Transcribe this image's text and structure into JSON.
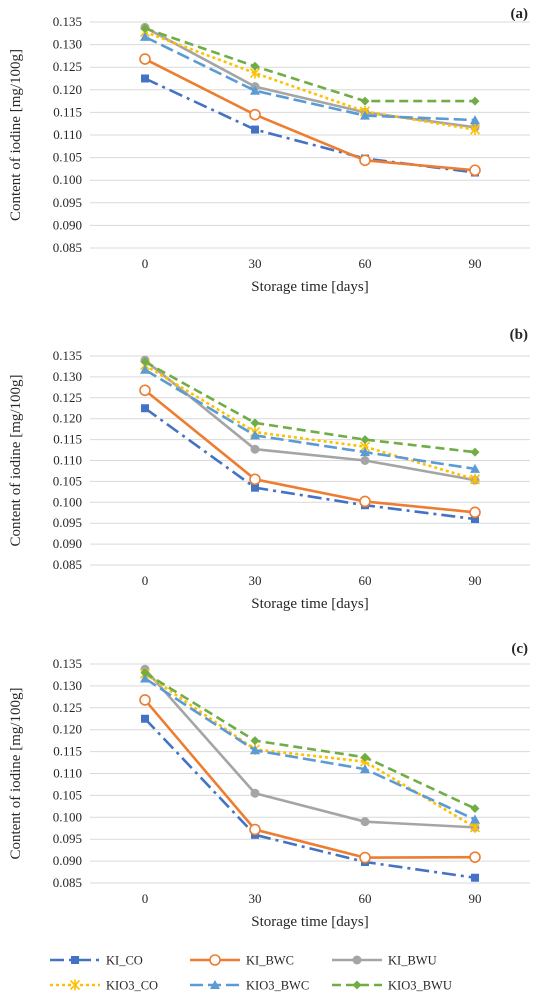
{
  "chart_data": [
    {
      "type": "line",
      "panel_label": "(a)",
      "xlabel": "Storage time [days]",
      "ylabel": "Content of iodine [mg/100g]",
      "categories": [
        "0",
        "30",
        "60",
        "90"
      ],
      "ylim": [
        0.085,
        0.135
      ],
      "yticks": [
        "0.085",
        "0.090",
        "0.095",
        "0.100",
        "0.105",
        "0.110",
        "0.115",
        "0.120",
        "0.125",
        "0.130",
        "0.135"
      ],
      "grid": true,
      "series": [
        {
          "name": "KI_CO",
          "values": [
            0.1225,
            0.1112,
            0.1048,
            0.1017
          ]
        },
        {
          "name": "KI_BWC",
          "values": [
            0.1268,
            0.1145,
            0.1044,
            0.1022
          ]
        },
        {
          "name": "KI_BWU",
          "values": [
            0.1338,
            0.1207,
            0.115,
            0.1117
          ]
        },
        {
          "name": "KIO3_CO",
          "values": [
            0.1328,
            0.1237,
            0.1152,
            0.1112
          ]
        },
        {
          "name": "KIO3_BWC",
          "values": [
            0.1317,
            0.1198,
            0.1143,
            0.1133
          ]
        },
        {
          "name": "KIO3_BWU",
          "values": [
            0.1336,
            0.1252,
            0.1175,
            0.1175
          ]
        }
      ]
    },
    {
      "type": "line",
      "panel_label": "(b)",
      "xlabel": "Storage time [days]",
      "ylabel": "Content of iodine [mg/100g]",
      "categories": [
        "0",
        "30",
        "60",
        "90"
      ],
      "ylim": [
        0.085,
        0.135
      ],
      "yticks": [
        "0.085",
        "0.090",
        "0.095",
        "0.100",
        "0.105",
        "0.110",
        "0.115",
        "0.120",
        "0.125",
        "0.130",
        "0.135"
      ],
      "grid": true,
      "series": [
        {
          "name": "KI_CO",
          "values": [
            0.1225,
            0.1035,
            0.0993,
            0.096
          ]
        },
        {
          "name": "KI_BWC",
          "values": [
            0.1268,
            0.1055,
            0.1002,
            0.0976
          ]
        },
        {
          "name": "KI_BWU",
          "values": [
            0.134,
            0.1127,
            0.11,
            0.1053
          ]
        },
        {
          "name": "KIO3_CO",
          "values": [
            0.1328,
            0.1168,
            0.1133,
            0.1055
          ]
        },
        {
          "name": "KIO3_BWC",
          "values": [
            0.1317,
            0.116,
            0.112,
            0.108
          ]
        },
        {
          "name": "KIO3_BWU",
          "values": [
            0.1336,
            0.119,
            0.115,
            0.112
          ]
        }
      ]
    },
    {
      "type": "line",
      "panel_label": "(c)",
      "xlabel": "Storage time [days]",
      "ylabel": "Content of iodine [mg/100g]",
      "categories": [
        "0",
        "30",
        "60",
        "90"
      ],
      "ylim": [
        0.085,
        0.135
      ],
      "yticks": [
        "0.085",
        "0.090",
        "0.095",
        "0.100",
        "0.105",
        "0.110",
        "0.115",
        "0.120",
        "0.125",
        "0.130",
        "0.135"
      ],
      "grid": true,
      "series": [
        {
          "name": "KI_CO",
          "values": [
            0.1225,
            0.096,
            0.0898,
            0.0862
          ]
        },
        {
          "name": "KI_BWC",
          "values": [
            0.1268,
            0.0972,
            0.0908,
            0.0909
          ]
        },
        {
          "name": "KI_BWU",
          "values": [
            0.1338,
            0.1055,
            0.099,
            0.0977
          ]
        },
        {
          "name": "KIO3_CO",
          "values": [
            0.1328,
            0.1155,
            0.1127,
            0.0977
          ]
        },
        {
          "name": "KIO3_BWC",
          "values": [
            0.1317,
            0.1153,
            0.111,
            0.0995
          ]
        },
        {
          "name": "KIO3_BWU",
          "values": [
            0.133,
            0.1175,
            0.1137,
            0.102
          ]
        }
      ]
    }
  ],
  "legend": [
    {
      "name": "KI_CO",
      "color": "#4472C4",
      "dash": "dash-dot",
      "marker": "square"
    },
    {
      "name": "KI_BWC",
      "color": "#ED7D31",
      "dash": "solid",
      "marker": "circle-open"
    },
    {
      "name": "KI_BWU",
      "color": "#A5A5A5",
      "dash": "solid",
      "marker": "circle"
    },
    {
      "name": "KIO3_CO",
      "color": "#FFC000",
      "dash": "dot",
      "marker": "star"
    },
    {
      "name": "KIO3_BWC",
      "color": "#5B9BD5",
      "dash": "long-dash",
      "marker": "triangle"
    },
    {
      "name": "KIO3_BWU",
      "color": "#70AD47",
      "dash": "dash",
      "marker": "diamond"
    }
  ]
}
